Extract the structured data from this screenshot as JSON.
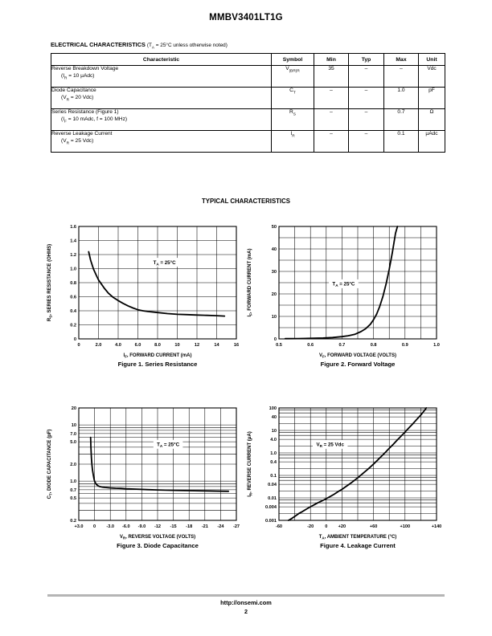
{
  "page": {
    "title": "MMBV3401LT1G",
    "section_heading": "ELECTRICAL CHARACTERISTICS",
    "section_note": "(T~A~ = 25°C unless otherwise noted)",
    "typical_heading": "TYPICAL CHARACTERISTICS",
    "footer_url": "http://onsemi.com",
    "footer_page": "2"
  },
  "table": {
    "headers": [
      "Characteristic",
      "Symbol",
      "Min",
      "Typ",
      "Max",
      "Unit"
    ],
    "rows": [
      {
        "characteristic": "Reverse Breakdown Voltage",
        "condition": "(I~R~ = 10 μAdc)",
        "symbol": "V~(BR)R~",
        "min": "35",
        "typ": "–",
        "max": "–",
        "unit": "Vdc"
      },
      {
        "characteristic": "Diode Capacitance",
        "condition": "(V~R~ = 20 Vdc)",
        "symbol": "C~T~",
        "min": "–",
        "typ": "–",
        "max": "1.0",
        "unit": "pF"
      },
      {
        "characteristic": "Series Resistance (Figure 1)",
        "condition": "(I~F~ = 10 mAdc, f = 100 MHz)",
        "symbol": "R~S~",
        "min": "–",
        "typ": "–",
        "max": "0.7",
        "unit": "Ω"
      },
      {
        "characteristic": "Reverse Leakage Current",
        "condition": "(V~R~ = 25 Vdc)",
        "symbol": "I~R~",
        "min": "–",
        "typ": "–",
        "max": "0.1",
        "unit": "μAdc"
      }
    ]
  },
  "chart_data": [
    {
      "id": "fig1",
      "type": "line",
      "title": "Figure 1. Series Resistance",
      "xlabel": "I~F~, FORWARD CURRENT (mA)",
      "ylabel": "R~S~, SERIES RESISTANCE (OHMS)",
      "annotation": "T~A~ = 25°C",
      "annotation_pos": [
        8.7,
        1.09
      ],
      "xscale": "linear",
      "yscale": "linear",
      "xlim": [
        0,
        16
      ],
      "ylim": [
        0,
        1.6
      ],
      "xgrid": [
        0,
        2,
        4,
        6,
        8,
        10,
        12,
        14,
        16
      ],
      "ygrid": [
        0,
        0.2,
        0.4,
        0.6,
        0.8,
        1.0,
        1.2,
        1.4,
        1.6
      ],
      "xticks_v": [
        0,
        2,
        4,
        6,
        8,
        10,
        12,
        14,
        16
      ],
      "xticks_l": [
        "0",
        "2.0",
        "4.0",
        "6.0",
        "8.0",
        "10",
        "12",
        "14",
        "16"
      ],
      "yticks_v": [
        0,
        0.2,
        0.4,
        0.6,
        0.8,
        1.0,
        1.2,
        1.4,
        1.6
      ],
      "yticks_l": [
        "0",
        "0.2",
        "0.4",
        "0.6",
        "0.8",
        "1.0",
        "1.2",
        "1.4",
        "1.6"
      ],
      "series": [
        {
          "name": "RS vs IF",
          "x": [
            1.0,
            1.2,
            1.5,
            1.8,
            2.0,
            2.3,
            2.6,
            3.0,
            3.5,
            4.0,
            4.5,
            5.0,
            5.5,
            6.0,
            6.5,
            7.0,
            8.0,
            9.0,
            10.0,
            11.0,
            12.0,
            13.0,
            14.0,
            14.8
          ],
          "y": [
            1.24,
            1.12,
            0.99,
            0.9,
            0.84,
            0.78,
            0.72,
            0.65,
            0.59,
            0.545,
            0.505,
            0.47,
            0.44,
            0.415,
            0.4,
            0.39,
            0.375,
            0.36,
            0.35,
            0.345,
            0.34,
            0.335,
            0.33,
            0.325
          ]
        }
      ]
    },
    {
      "id": "fig2",
      "type": "line",
      "title": "Figure 2. Forward Voltage",
      "xlabel": "V~F~, FORWARD VOLTAGE (VOLTS)",
      "ylabel": "I~F~, FORWARD CURRENT (mA)",
      "annotation": "T~A~ = 25°C",
      "annotation_pos": [
        0.705,
        24.5
      ],
      "xscale": "linear",
      "yscale": "linear",
      "xlim": [
        0.5,
        1.0
      ],
      "ylim": [
        0,
        50
      ],
      "xgrid": [
        0.5,
        0.55,
        0.6,
        0.65,
        0.7,
        0.75,
        0.8,
        0.85,
        0.9,
        0.95,
        1.0
      ],
      "ygrid": [
        0,
        5,
        10,
        15,
        20,
        25,
        30,
        35,
        40,
        45,
        50
      ],
      "xticks_v": [
        0.5,
        0.6,
        0.7,
        0.8,
        0.9,
        1.0
      ],
      "xticks_l": [
        "0.5",
        "0.6",
        "0.7",
        "0.8",
        "0.9",
        "1.0"
      ],
      "yticks_v": [
        0,
        10,
        20,
        30,
        40,
        50
      ],
      "yticks_l": [
        "0",
        "10",
        "20",
        "30",
        "40",
        "50"
      ],
      "series": [
        {
          "name": "IF vs VF",
          "x": [
            0.52,
            0.56,
            0.6,
            0.64,
            0.67,
            0.7,
            0.72,
            0.74,
            0.76,
            0.775,
            0.79,
            0.8,
            0.81,
            0.82,
            0.83,
            0.84,
            0.85,
            0.86,
            0.87,
            0.876
          ],
          "y": [
            0.1,
            0.15,
            0.25,
            0.4,
            0.6,
            1.0,
            1.4,
            2.0,
            3.2,
            4.5,
            6.5,
            8.5,
            11,
            14.5,
            19,
            24.5,
            31,
            38.5,
            47,
            50
          ]
        }
      ]
    },
    {
      "id": "fig3",
      "type": "line",
      "title": "Figure 3. Diode Capacitance",
      "xlabel": "V~R~, REVERSE VOLTAGE (VOLTS)",
      "ylabel": "C~T~, DIODE CAPACITANCE (pF)",
      "annotation": "T~A~ = 25°C",
      "annotation_pos": [
        -14,
        4.5
      ],
      "xscale": "linear",
      "yscale": "log",
      "xlim": [
        3,
        -27
      ],
      "ylim": [
        0.2,
        20
      ],
      "xgrid": [
        3,
        0,
        -3,
        -6,
        -9,
        -12,
        -15,
        -18,
        -21,
        -24,
        -27
      ],
      "ygrid": [
        0.2,
        0.3,
        0.4,
        0.5,
        0.6,
        0.7,
        0.8,
        0.9,
        1,
        2,
        3,
        4,
        5,
        6,
        7,
        8,
        9,
        10,
        20
      ],
      "xticks_v": [
        3,
        0,
        -3,
        -6,
        -9,
        -12,
        -15,
        -18,
        -21,
        -24,
        -27
      ],
      "xticks_l": [
        "+3.0",
        "0",
        "-3.0",
        "-6.0",
        "-9.0",
        "-12",
        "-15",
        "-18",
        "-21",
        "-24",
        "-27"
      ],
      "yticks_v": [
        20,
        10,
        7,
        5,
        2,
        1,
        0.7,
        0.5,
        0.2
      ],
      "yticks_l": [
        "20",
        "10",
        "7.0",
        "5.0",
        "2.0",
        "1.0",
        "0.7",
        "0.5",
        "0.2"
      ],
      "series": [
        {
          "name": "CT vs VR",
          "x": [
            0.75,
            0.72,
            0.7,
            0.65,
            0.6,
            0.5,
            0.4,
            0.25,
            0.1,
            0.0,
            -0.3,
            -0.7,
            -1.0,
            -1.5,
            -2,
            -3,
            -4,
            -5,
            -6,
            -8,
            -10,
            -12,
            -15,
            -18,
            -21,
            -24,
            -25.5
          ],
          "y": [
            6.0,
            5.0,
            4.2,
            3.2,
            2.6,
            2.0,
            1.6,
            1.3,
            1.1,
            1.0,
            0.88,
            0.82,
            0.8,
            0.78,
            0.77,
            0.755,
            0.745,
            0.74,
            0.73,
            0.72,
            0.705,
            0.695,
            0.685,
            0.675,
            0.668,
            0.66,
            0.657
          ]
        }
      ]
    },
    {
      "id": "fig4",
      "type": "line",
      "title": "Figure 4. Leakage Current",
      "xlabel": "T~A~, AMBIENT TEMPERATURE (°C)",
      "ylabel": "I~R~, REVERSE CURRENT (μA)",
      "annotation": "V~R~ = 25 Vdc",
      "annotation_pos": [
        5,
        2.4
      ],
      "xscale": "linear",
      "yscale": "log",
      "xlim": [
        -60,
        140
      ],
      "ylim": [
        0.001,
        100
      ],
      "xgrid": [
        -60,
        -40,
        -20,
        0,
        20,
        40,
        60,
        80,
        100,
        120,
        140
      ],
      "ygrid": [
        0.001,
        0.002,
        0.004,
        0.006,
        0.008,
        0.01,
        0.02,
        0.04,
        0.06,
        0.08,
        0.1,
        0.2,
        0.4,
        0.6,
        0.8,
        1,
        2,
        4,
        6,
        8,
        10,
        20,
        40,
        60,
        80,
        100
      ],
      "xticks_v": [
        -60,
        -20,
        0,
        20,
        60,
        100,
        140
      ],
      "xticks_l": [
        "-60",
        "-20",
        "0",
        "+20",
        "+60",
        "+100",
        "+140"
      ],
      "yticks_v": [
        100,
        40,
        10,
        4,
        1,
        0.4,
        0.1,
        0.04,
        0.01,
        0.004,
        0.001
      ],
      "yticks_l": [
        "100",
        "40",
        "10",
        "4.0",
        "1.0",
        "0.4",
        "0.1",
        "0.04",
        "0.01",
        "0.004",
        "0.001"
      ],
      "series": [
        {
          "name": "IR vs TA",
          "x": [
            -48,
            -44,
            -40,
            -35,
            -30,
            -25,
            -20,
            -15,
            -10,
            -5,
            0,
            5,
            10,
            15,
            20,
            25,
            30,
            35,
            40,
            45,
            50,
            55,
            60,
            65,
            70,
            75,
            80,
            85,
            90,
            95,
            100,
            105,
            110,
            115,
            120,
            124,
            127
          ],
          "y": [
            0.001,
            0.0012,
            0.0015,
            0.002,
            0.0025,
            0.0032,
            0.004,
            0.005,
            0.0062,
            0.0075,
            0.0092,
            0.0115,
            0.0145,
            0.019,
            0.024,
            0.032,
            0.042,
            0.057,
            0.078,
            0.11,
            0.155,
            0.22,
            0.32,
            0.47,
            0.7,
            1.05,
            1.6,
            2.4,
            3.7,
            5.6,
            8.5,
            13,
            20,
            31,
            48,
            72,
            100
          ]
        }
      ]
    }
  ]
}
